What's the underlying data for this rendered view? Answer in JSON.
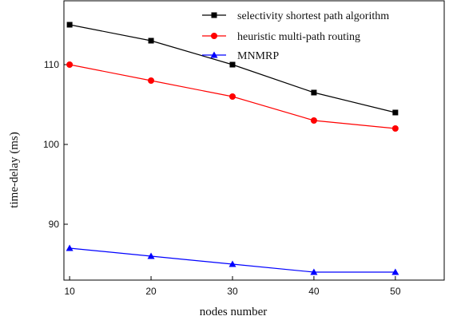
{
  "chart_data": {
    "type": "line",
    "title": "",
    "xlabel": "nodes number",
    "ylabel": "time-delay (ms)",
    "x": [
      10,
      20,
      30,
      40,
      50
    ],
    "x_ticks": [
      10,
      20,
      30,
      40,
      50
    ],
    "y_ticks": [
      90,
      100,
      110
    ],
    "xlim": [
      9.3,
      56
    ],
    "ylim": [
      83,
      118
    ],
    "grid": false,
    "legend_position": "top-right",
    "series": [
      {
        "name": "selectivity shortest path algorithm",
        "color": "#000000",
        "marker": "square",
        "values": [
          115,
          113,
          110,
          106.5,
          104
        ]
      },
      {
        "name": "heuristic multi-path routing",
        "color": "#ff0000",
        "marker": "circle",
        "values": [
          110,
          108,
          106,
          103,
          102
        ]
      },
      {
        "name": "MNMRP",
        "color": "#0000ff",
        "marker": "triangle",
        "values": [
          87,
          86,
          85,
          84,
          84
        ]
      }
    ]
  }
}
